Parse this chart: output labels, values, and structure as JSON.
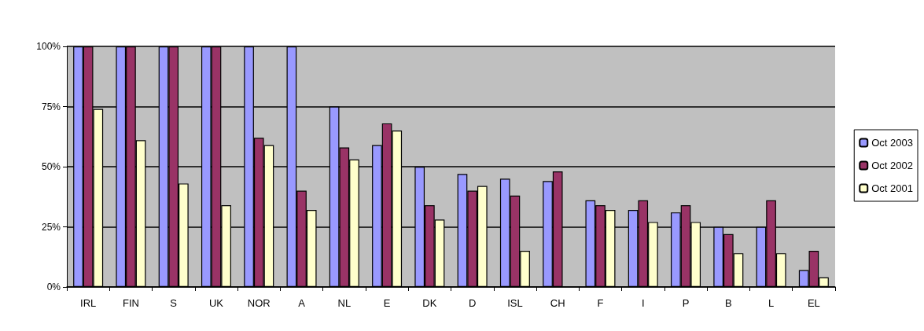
{
  "chart_data": {
    "type": "bar",
    "categories": [
      "IRL",
      "FIN",
      "S",
      "UK",
      "NOR",
      "A",
      "NL",
      "E",
      "DK",
      "D",
      "ISL",
      "CH",
      "F",
      "I",
      "P",
      "B",
      "L",
      "EL"
    ],
    "series": [
      {
        "name": "Oct 2003",
        "color": "#9999ff",
        "values": [
          100,
          100,
          100,
          100,
          100,
          100,
          75,
          59,
          50,
          47,
          45,
          44,
          36,
          32,
          31,
          25,
          25,
          7
        ]
      },
      {
        "name": "Oct 2002",
        "color": "#993366",
        "values": [
          100,
          100,
          100,
          100,
          62,
          40,
          58,
          68,
          34,
          40,
          38,
          48,
          34,
          36,
          34,
          22,
          36,
          15
        ]
      },
      {
        "name": "Oct 2001",
        "color": "#ffffcc",
        "values": [
          74,
          61,
          43,
          34,
          59,
          32,
          53,
          65,
          28,
          42,
          15,
          null,
          32,
          27,
          27,
          14,
          14,
          4
        ]
      }
    ],
    "ylim": [
      0,
      100
    ],
    "yticks": [
      {
        "value": 0,
        "label": "0%"
      },
      {
        "value": 25,
        "label": "25%"
      },
      {
        "value": 50,
        "label": "50%"
      },
      {
        "value": 75,
        "label": "75%"
      },
      {
        "value": 100,
        "label": "100%"
      }
    ],
    "grid": "y",
    "legend": "right"
  }
}
